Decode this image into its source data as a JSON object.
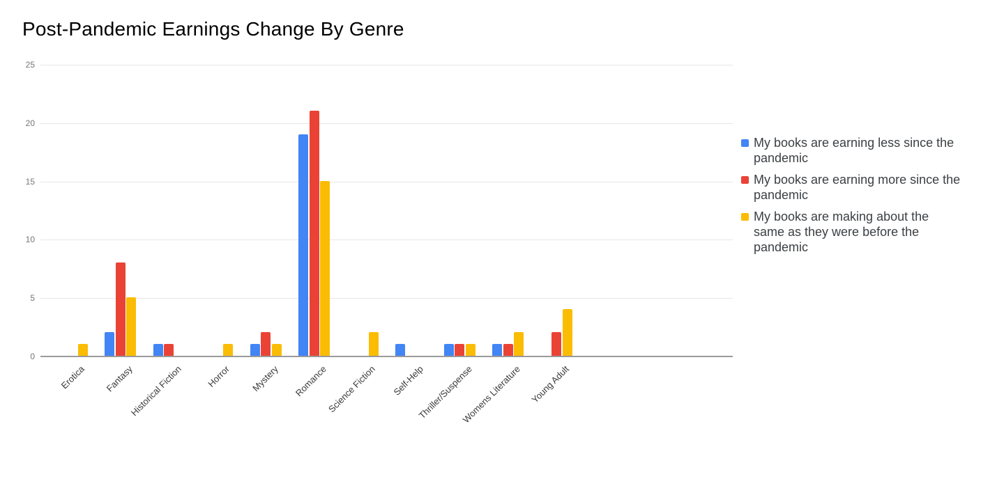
{
  "chart_data": {
    "type": "bar",
    "title": "Post-Pandemic Earnings Change By Genre",
    "categories": [
      "Erotica",
      "Fantasy",
      "Historical Fiction",
      "Horror",
      "Mystery",
      "Romance",
      "Science Fiction",
      "Self-Help",
      "Thriller/Suspense",
      "Womens Literature",
      "Young Adult"
    ],
    "series": [
      {
        "key": "less",
        "name": "My books are earning less since the pandemic",
        "color": "#4285F4",
        "values": [
          0,
          2,
          1,
          0,
          1,
          19,
          0,
          1,
          1,
          1,
          0
        ]
      },
      {
        "key": "more",
        "name": "My books are earning more since the pandemic",
        "color": "#EA4335",
        "values": [
          0,
          8,
          1,
          0,
          2,
          21,
          0,
          0,
          1,
          1,
          2
        ]
      },
      {
        "key": "same",
        "name": "My books are making about the same as they were before the pandemic",
        "color": "#FBBC04",
        "values": [
          1,
          5,
          0,
          1,
          1,
          15,
          2,
          0,
          1,
          2,
          4
        ]
      }
    ],
    "xlabel": "",
    "ylabel": "",
    "ylim": [
      0,
      25
    ],
    "yticks": [
      0,
      5,
      10,
      15,
      20,
      25
    ],
    "grid": true,
    "legend_position": "right"
  },
  "legend": {
    "items": [
      {
        "lines": [
          "My books are earning less since the",
          "pandemic"
        ]
      },
      {
        "lines": [
          "My books are earning more since the",
          "pandemic"
        ]
      },
      {
        "lines": [
          "My books are making about the",
          "same as they were before the",
          "pandemic"
        ]
      }
    ]
  },
  "colors": {
    "grid": "#e6e6e6",
    "axis_line": "#9a9a9a",
    "ytick_text": "#757575",
    "xlabel_text": "#3a3a3a",
    "legend_text": "#3c4043",
    "title_text": "#000000",
    "background": "#ffffff"
  }
}
